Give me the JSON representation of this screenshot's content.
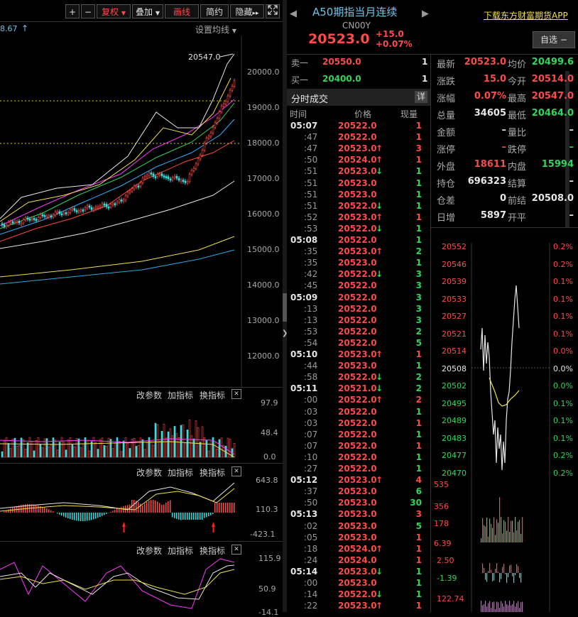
{
  "toolbar": {
    "plus": "+",
    "minus": "−",
    "fuquan": "复权",
    "diejia": "叠加",
    "huaxian": "画线",
    "jianyue": "简约",
    "yincang": "隐藏",
    "more": "▸▸"
  },
  "chart_header": {
    "partial_value": "8.67",
    "arrow": "↑",
    "set_ma": "设置均线"
  },
  "kline": {
    "peak_label": "20547.0",
    "y_ticks": [
      "20000.0",
      "19000.0",
      "18000.0",
      "17000.0",
      "16000.0",
      "15000.0",
      "14000.0",
      "13000.0",
      "12000.0"
    ]
  },
  "panels": {
    "gaicanshu": "改参数",
    "jiazhibiao": "加指标",
    "huanzhibiao": "换指标",
    "close": "✕",
    "vol_ticks": [
      "97.9",
      "48.4",
      "0.0"
    ],
    "macd_ticks": [
      "643.8",
      "110.3",
      "-423.1"
    ],
    "kdj_ticks": [
      "115.9",
      "50.9",
      "-14.1"
    ]
  },
  "instrument": {
    "name": "A50期指当月连续",
    "code": "CN00Y",
    "price": "20523.0",
    "change": "+15.0",
    "change_pct": "+0.07%",
    "download_app": "下载东方财富期货APP",
    "watchlist": "自选",
    "watch_minus": "−"
  },
  "orderbook": {
    "sell_label": "卖一",
    "sell_price": "20550.0",
    "sell_qty": "1",
    "buy_label": "买一",
    "buy_price": "20400.0",
    "buy_qty": "1"
  },
  "trades": {
    "title": "分时成交",
    "detail": "详",
    "col_time": "时间",
    "col_price": "价格",
    "col_vol": "现量",
    "rows": [
      {
        "t": "05:07",
        "p": "20522.0",
        "a": "",
        "v": "1",
        "pc": "red",
        "vc": "red",
        "major": true
      },
      {
        "t": ":47",
        "p": "20522.0",
        "a": "",
        "v": "1",
        "pc": "red",
        "vc": "red"
      },
      {
        "t": ":47",
        "p": "20523.0",
        "a": "up",
        "v": "3",
        "pc": "red",
        "vc": "red"
      },
      {
        "t": ":50",
        "p": "20524.0",
        "a": "up",
        "v": "1",
        "pc": "red",
        "vc": "red"
      },
      {
        "t": ":51",
        "p": "20523.0",
        "a": "down",
        "v": "1",
        "pc": "red",
        "vc": "green"
      },
      {
        "t": ":51",
        "p": "20523.0",
        "a": "",
        "v": "1",
        "pc": "red",
        "vc": "green"
      },
      {
        "t": ":51",
        "p": "20523.0",
        "a": "",
        "v": "1",
        "pc": "red",
        "vc": "green"
      },
      {
        "t": ":51",
        "p": "20522.0",
        "a": "down",
        "v": "1",
        "pc": "red",
        "vc": "green"
      },
      {
        "t": ":52",
        "p": "20523.0",
        "a": "up",
        "v": "1",
        "pc": "red",
        "vc": "red"
      },
      {
        "t": ":53",
        "p": "20522.0",
        "a": "down",
        "v": "1",
        "pc": "red",
        "vc": "green"
      },
      {
        "t": "05:08",
        "p": "20522.0",
        "a": "",
        "v": "1",
        "pc": "red",
        "vc": "green",
        "major": true
      },
      {
        "t": ":35",
        "p": "20523.0",
        "a": "up",
        "v": "2",
        "pc": "red",
        "vc": "green"
      },
      {
        "t": ":35",
        "p": "20523.0",
        "a": "",
        "v": "1",
        "pc": "red",
        "vc": "green"
      },
      {
        "t": ":42",
        "p": "20522.0",
        "a": "down",
        "v": "3",
        "pc": "red",
        "vc": "green"
      },
      {
        "t": ":45",
        "p": "20522.0",
        "a": "",
        "v": "3",
        "pc": "red",
        "vc": "green"
      },
      {
        "t": "05:09",
        "p": "20522.0",
        "a": "",
        "v": "3",
        "pc": "red",
        "vc": "green",
        "major": true
      },
      {
        "t": ":13",
        "p": "20522.0",
        "a": "",
        "v": "3",
        "pc": "red",
        "vc": "green"
      },
      {
        "t": ":13",
        "p": "20522.0",
        "a": "",
        "v": "3",
        "pc": "red",
        "vc": "green"
      },
      {
        "t": ":53",
        "p": "20522.0",
        "a": "",
        "v": "2",
        "pc": "red",
        "vc": "green"
      },
      {
        "t": ":54",
        "p": "20522.0",
        "a": "",
        "v": "5",
        "pc": "red",
        "vc": "green"
      },
      {
        "t": "05:10",
        "p": "20523.0",
        "a": "up",
        "v": "1",
        "pc": "red",
        "vc": "red",
        "major": true
      },
      {
        "t": ":44",
        "p": "20523.0",
        "a": "",
        "v": "1",
        "pc": "red",
        "vc": "green"
      },
      {
        "t": ":58",
        "p": "20522.0",
        "a": "down",
        "v": "2",
        "pc": "red",
        "vc": "green"
      },
      {
        "t": "05:11",
        "p": "20521.0",
        "a": "down",
        "v": "2",
        "pc": "red",
        "vc": "green",
        "major": true
      },
      {
        "t": ":00",
        "p": "20522.0",
        "a": "up",
        "v": "2",
        "pc": "red",
        "vc": "red"
      },
      {
        "t": ":03",
        "p": "20522.0",
        "a": "",
        "v": "1",
        "pc": "red",
        "vc": "green"
      },
      {
        "t": ":03",
        "p": "20522.0",
        "a": "",
        "v": "1",
        "pc": "red",
        "vc": "red"
      },
      {
        "t": ":07",
        "p": "20522.0",
        "a": "",
        "v": "1",
        "pc": "red",
        "vc": "green"
      },
      {
        "t": ":07",
        "p": "20522.0",
        "a": "",
        "v": "1",
        "pc": "red",
        "vc": "red"
      },
      {
        "t": ":10",
        "p": "20522.0",
        "a": "",
        "v": "1",
        "pc": "red",
        "vc": "green"
      },
      {
        "t": ":27",
        "p": "20522.0",
        "a": "",
        "v": "1",
        "pc": "red",
        "vc": "green"
      },
      {
        "t": "05:12",
        "p": "20523.0",
        "a": "up",
        "v": "4",
        "pc": "red",
        "vc": "red",
        "major": true
      },
      {
        "t": ":37",
        "p": "20523.0",
        "a": "",
        "v": "6",
        "pc": "red",
        "vc": "green"
      },
      {
        "t": ":50",
        "p": "20523.0",
        "a": "",
        "v": "30",
        "pc": "red",
        "vc": "green"
      },
      {
        "t": "05:13",
        "p": "20523.0",
        "a": "",
        "v": "3",
        "pc": "red",
        "vc": "red",
        "major": true
      },
      {
        "t": ":02",
        "p": "20523.0",
        "a": "",
        "v": "5",
        "pc": "red",
        "vc": "green"
      },
      {
        "t": ":05",
        "p": "20523.0",
        "a": "",
        "v": "1",
        "pc": "red",
        "vc": "red"
      },
      {
        "t": ":18",
        "p": "20524.0",
        "a": "up",
        "v": "1",
        "pc": "red",
        "vc": "red"
      },
      {
        "t": ":24",
        "p": "20524.0",
        "a": "",
        "v": "1",
        "pc": "red",
        "vc": "red"
      },
      {
        "t": "05:14",
        "p": "20523.0",
        "a": "down",
        "v": "1",
        "pc": "red",
        "vc": "green",
        "major": true
      },
      {
        "t": ":00",
        "p": "20523.0",
        "a": "",
        "v": "1",
        "pc": "red",
        "vc": "green"
      },
      {
        "t": ":14",
        "p": "20522.0",
        "a": "down",
        "v": "1",
        "pc": "red",
        "vc": "green"
      },
      {
        "t": ":22",
        "p": "20523.0",
        "a": "up",
        "v": "1",
        "pc": "red",
        "vc": "red"
      }
    ]
  },
  "stats": [
    {
      "l1": "最新",
      "v1": "20523.0",
      "c1": "red",
      "l2": "均价",
      "v2": "20499.6",
      "c2": "green"
    },
    {
      "l1": "涨跌",
      "v1": "15.0",
      "c1": "red",
      "l2": "今开",
      "v2": "20514.0",
      "c2": "red"
    },
    {
      "l1": "涨幅",
      "v1": "0.07%",
      "c1": "red",
      "l2": "最高",
      "v2": "20547.0",
      "c2": "red"
    },
    {
      "l1": "总量",
      "v1": "34605",
      "c1": "white",
      "l2": "最低",
      "v2": "20464.0",
      "c2": "green"
    },
    {
      "l1": "金额",
      "v1": "–",
      "c1": "white",
      "l2": "量比",
      "v2": "–",
      "c2": "white"
    },
    {
      "l1": "涨停",
      "v1": "–",
      "c1": "red",
      "l2": "跌停",
      "v2": "–",
      "c2": "green"
    },
    {
      "l1": "外盘",
      "v1": "18611",
      "c1": "red",
      "l2": "内盘",
      "v2": "15994",
      "c2": "green"
    },
    {
      "l1": "持仓",
      "v1": "696323",
      "c1": "white",
      "l2": "结算",
      "v2": "–",
      "c2": "white"
    },
    {
      "l1": "仓差",
      "v1": "0",
      "c1": "white",
      "l2": "前结",
      "v2": "20508.0",
      "c2": "white"
    },
    {
      "l1": "日增",
      "v1": "5897",
      "c1": "white",
      "l2": "开平",
      "v2": "–",
      "c2": "white"
    }
  ],
  "mini": {
    "left_ticks": [
      {
        "v": "20552",
        "c": "red"
      },
      {
        "v": "20546",
        "c": "red"
      },
      {
        "v": "20539",
        "c": "red"
      },
      {
        "v": "20533",
        "c": "red"
      },
      {
        "v": "20527",
        "c": "red"
      },
      {
        "v": "20521",
        "c": "red"
      },
      {
        "v": "20514",
        "c": "red"
      },
      {
        "v": "20508",
        "c": "white"
      },
      {
        "v": "20502",
        "c": "green"
      },
      {
        "v": "20495",
        "c": "green"
      },
      {
        "v": "20489",
        "c": "green"
      },
      {
        "v": "20483",
        "c": "green"
      },
      {
        "v": "20477",
        "c": "green"
      },
      {
        "v": "20470",
        "c": "green"
      }
    ],
    "right_ticks": [
      {
        "v": "0.2%",
        "c": "red"
      },
      {
        "v": "0.2%",
        "c": "red"
      },
      {
        "v": "0.1%",
        "c": "red"
      },
      {
        "v": "0.1%",
        "c": "red"
      },
      {
        "v": "0.1%",
        "c": "red"
      },
      {
        "v": "0.1%",
        "c": "red"
      },
      {
        "v": "0.0%",
        "c": "red"
      },
      {
        "v": "0.0%",
        "c": "white"
      },
      {
        "v": "0.0%",
        "c": "green"
      },
      {
        "v": "0.1%",
        "c": "green"
      },
      {
        "v": "0.1%",
        "c": "green"
      },
      {
        "v": "0.1%",
        "c": "green"
      },
      {
        "v": "0.2%",
        "c": "green"
      },
      {
        "v": "0.2%",
        "c": "green"
      }
    ],
    "vol_ticks": [
      "535",
      "356",
      "178",
      "6.39"
    ],
    "macd_ticks": [
      "2.50",
      "-1.39"
    ],
    "kdj_tick": "122.74"
  },
  "colors": {
    "up": "#ff4a4a",
    "down": "#2fd65a",
    "accent": "#ff6a2a",
    "grid_dash": "#d4d400"
  }
}
